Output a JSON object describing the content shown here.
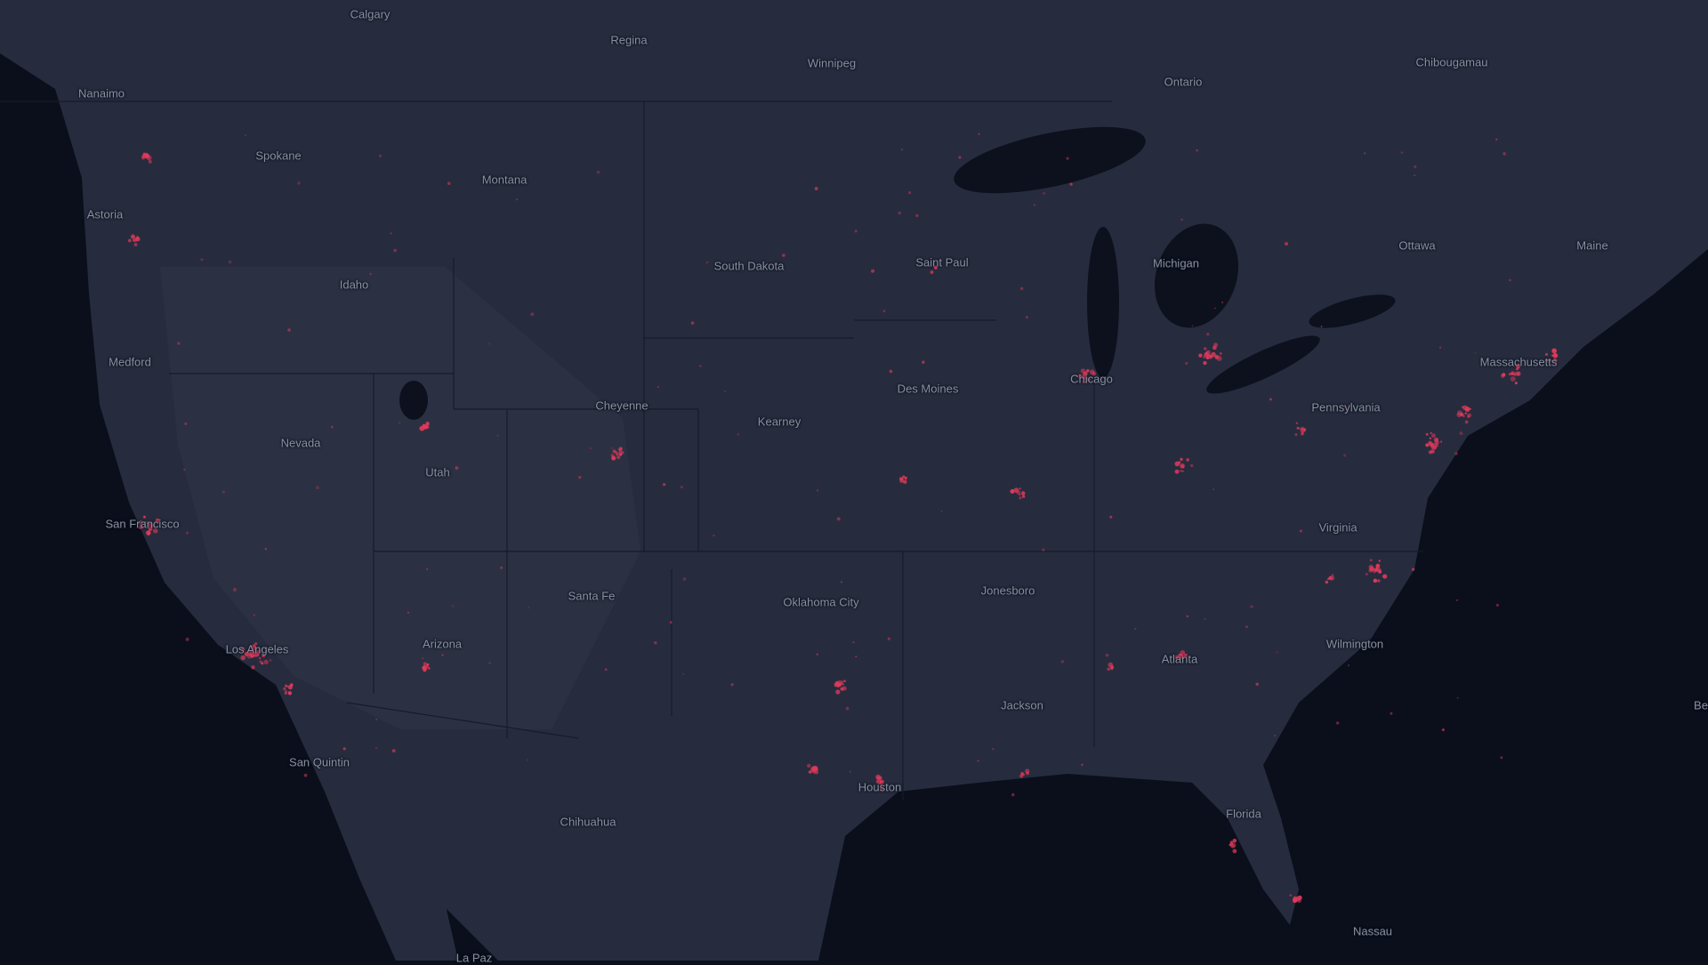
{
  "map": {
    "style": "dark",
    "colors": {
      "water": "#0a0f1b",
      "land": "#262c3e",
      "border": "#151a28",
      "hotspot": "#e0395a"
    },
    "labels": [
      {
        "text": "Calgary",
        "type": "city"
      },
      {
        "text": "Regina",
        "type": "city"
      },
      {
        "text": "Winnipeg",
        "type": "city"
      },
      {
        "text": "Ontario",
        "type": "region"
      },
      {
        "text": "Chibougamau",
        "type": "city"
      },
      {
        "text": "Nanaimo",
        "type": "city"
      },
      {
        "text": "Spokane",
        "type": "city"
      },
      {
        "text": "Montana",
        "type": "region"
      },
      {
        "text": "Astoria",
        "type": "city"
      },
      {
        "text": "South Dakota",
        "type": "region"
      },
      {
        "text": "Saint Paul",
        "type": "city"
      },
      {
        "text": "Michigan",
        "type": "region"
      },
      {
        "text": "Ottawa",
        "type": "city"
      },
      {
        "text": "Maine",
        "type": "region"
      },
      {
        "text": "Idaho",
        "type": "region"
      },
      {
        "text": "Medford",
        "type": "city"
      },
      {
        "text": "Massachusetts",
        "type": "region"
      },
      {
        "text": "Des Moines",
        "type": "city"
      },
      {
        "text": "Chicago",
        "type": "city"
      },
      {
        "text": "Cheyenne",
        "type": "city"
      },
      {
        "text": "Pennsylvania",
        "type": "region"
      },
      {
        "text": "Kearney",
        "type": "city"
      },
      {
        "text": "Nevada",
        "type": "region"
      },
      {
        "text": "Utah",
        "type": "region"
      },
      {
        "text": "Virginia",
        "type": "region"
      },
      {
        "text": "San Francisco",
        "type": "city"
      },
      {
        "text": "Santa Fe",
        "type": "city"
      },
      {
        "text": "Jonesboro",
        "type": "city"
      },
      {
        "text": "Oklahoma City",
        "type": "city"
      },
      {
        "text": "Arizona",
        "type": "region"
      },
      {
        "text": "Los Angeles",
        "type": "city"
      },
      {
        "text": "Atlanta",
        "type": "city"
      },
      {
        "text": "Wilmington",
        "type": "city"
      },
      {
        "text": "Jackson",
        "type": "city"
      },
      {
        "text": "San Quintin",
        "type": "city"
      },
      {
        "text": "Houston",
        "type": "city"
      },
      {
        "text": "Florida",
        "type": "region"
      },
      {
        "text": "Chihuahua",
        "type": "city"
      },
      {
        "text": "Nassau",
        "type": "city"
      },
      {
        "text": "Be",
        "type": "city"
      },
      {
        "text": "La Paz",
        "type": "city"
      }
    ]
  }
}
